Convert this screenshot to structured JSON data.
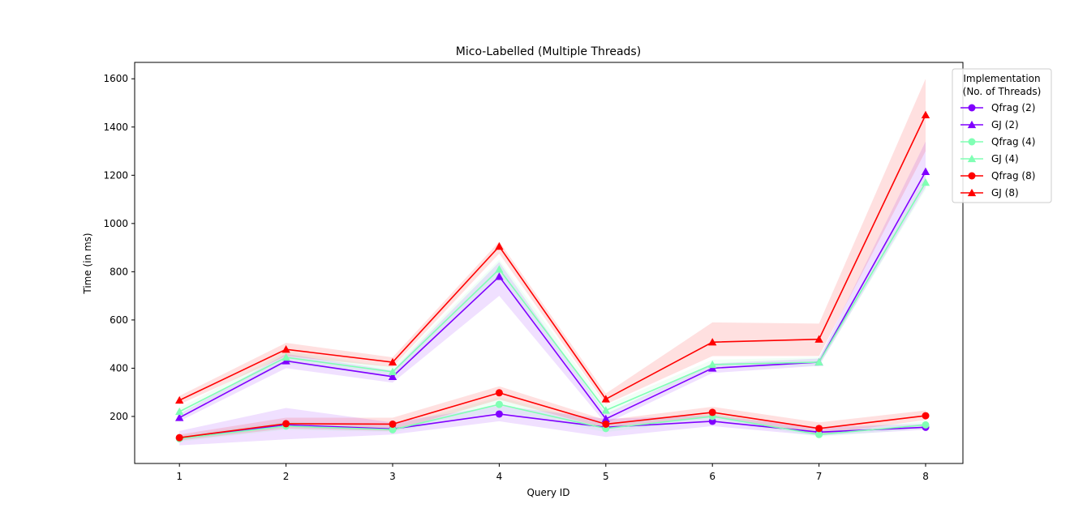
{
  "chart_data": {
    "type": "line",
    "title": "Mico-Labelled (Multiple Threads)",
    "xlabel": "Query ID",
    "ylabel": "Time (in ms)",
    "x": [
      1,
      2,
      3,
      4,
      5,
      6,
      7,
      8
    ],
    "x_ticks": [
      "1",
      "2",
      "3",
      "4",
      "5",
      "6",
      "7",
      "8"
    ],
    "y_ticks": [
      "200",
      "400",
      "600",
      "800",
      "1000",
      "1200",
      "1400",
      "1600"
    ],
    "xlim": [
      0.58,
      8.35
    ],
    "ylim": [
      5,
      1668
    ],
    "grid": false,
    "legend": {
      "title_line1": "Implementation",
      "title_line2": "(No. of Threads)",
      "placement": "outside-top-right"
    },
    "series": [
      {
        "name": "Qfrag (2)",
        "color": "#8000ff",
        "marker": "circle",
        "values": [
          110,
          165,
          148,
          210,
          155,
          180,
          135,
          155
        ],
        "lower": [
          80,
          105,
          125,
          180,
          115,
          160,
          120,
          145
        ],
        "upper": [
          140,
          235,
          175,
          245,
          190,
          205,
          155,
          170
        ]
      },
      {
        "name": "GJ (2)",
        "color": "#8000ff",
        "marker": "triangle",
        "values": [
          195,
          430,
          365,
          780,
          190,
          400,
          425,
          1215
        ],
        "lower": [
          180,
          400,
          340,
          700,
          170,
          380,
          410,
          1150
        ],
        "upper": [
          210,
          460,
          390,
          840,
          210,
          420,
          440,
          1340
        ]
      },
      {
        "name": "Qfrag (4)",
        "color": "#80ffb4",
        "marker": "circle",
        "values": [
          108,
          160,
          145,
          250,
          150,
          200,
          125,
          165
        ],
        "lower": [
          95,
          145,
          135,
          220,
          135,
          185,
          115,
          150
        ],
        "upper": [
          120,
          180,
          160,
          280,
          165,
          215,
          140,
          180
        ]
      },
      {
        "name": "GJ (4)",
        "color": "#80ffb4",
        "marker": "triangle",
        "values": [
          220,
          445,
          385,
          810,
          225,
          415,
          425,
          1170
        ],
        "lower": [
          205,
          420,
          365,
          780,
          205,
          400,
          410,
          1140
        ],
        "upper": [
          235,
          470,
          405,
          850,
          245,
          435,
          445,
          1200
        ]
      },
      {
        "name": "Qfrag (8)",
        "color": "#ff0000",
        "marker": "circle",
        "values": [
          112,
          170,
          168,
          298,
          168,
          217,
          150,
          203
        ],
        "lower": [
          100,
          150,
          140,
          270,
          150,
          200,
          125,
          185
        ],
        "upper": [
          125,
          195,
          195,
          325,
          185,
          240,
          175,
          225
        ]
      },
      {
        "name": "GJ (8)",
        "color": "#ff0000",
        "marker": "triangle",
        "values": [
          267,
          478,
          425,
          905,
          272,
          508,
          520,
          1450
        ],
        "lower": [
          250,
          450,
          405,
          875,
          250,
          450,
          450,
          1300
        ],
        "upper": [
          285,
          505,
          445,
          925,
          295,
          590,
          585,
          1600
        ]
      }
    ]
  }
}
